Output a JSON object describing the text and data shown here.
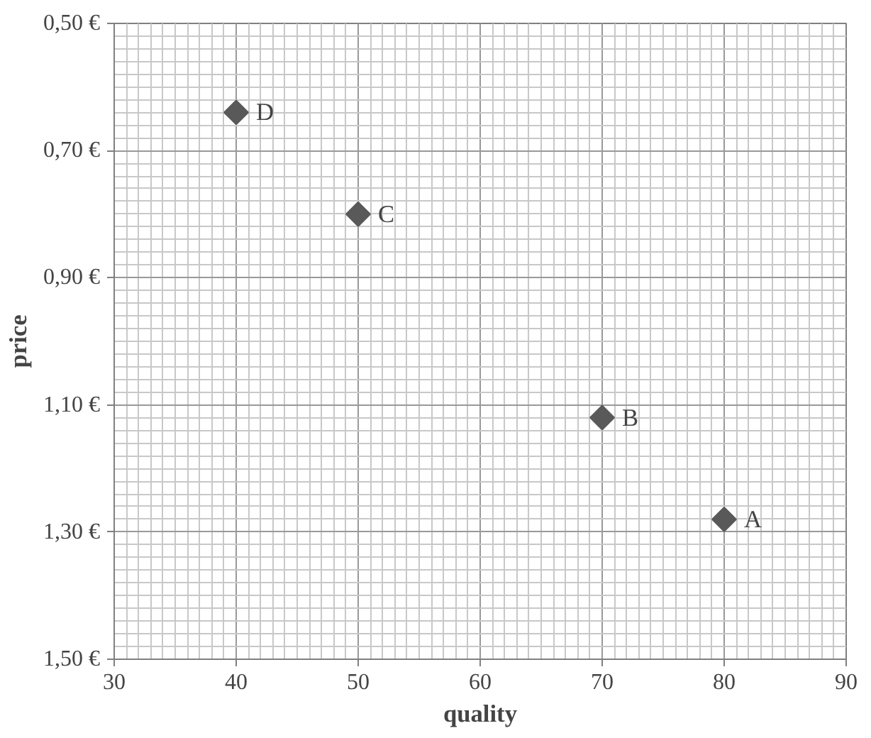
{
  "chart_data": {
    "type": "scatter",
    "xlabel": "quality",
    "ylabel": "price",
    "series": [
      {
        "color": "#595959",
        "x": [
          80,
          70,
          50,
          40
        ],
        "values": [
          1.28,
          1.12,
          0.8,
          0.64
        ]
      }
    ],
    "marker": "diamond",
    "grid": true,
    "xlim": [
      30,
      90
    ],
    "xticks": [
      30,
      40,
      50,
      60,
      70,
      80,
      90
    ],
    "ylim": [
      1.5,
      0.5
    ],
    "yticks": [
      {
        "value": 0.5,
        "label": "0,50 €"
      },
      {
        "value": 0.7,
        "label": "0,70 €"
      },
      {
        "value": 0.9,
        "label": "0,90 €"
      },
      {
        "value": 1.1,
        "label": "1,10 €"
      },
      {
        "value": 1.3,
        "label": "1,30 €"
      },
      {
        "value": 1.5,
        "label": "1,50 €"
      }
    ],
    "annotations": [
      {
        "text": "A",
        "x": 80,
        "y": 1.28
      },
      {
        "text": "B",
        "x": 70,
        "y": 1.12
      },
      {
        "text": "C",
        "x": 50,
        "y": 0.8
      },
      {
        "text": "D",
        "x": 40,
        "y": 0.64
      }
    ]
  }
}
